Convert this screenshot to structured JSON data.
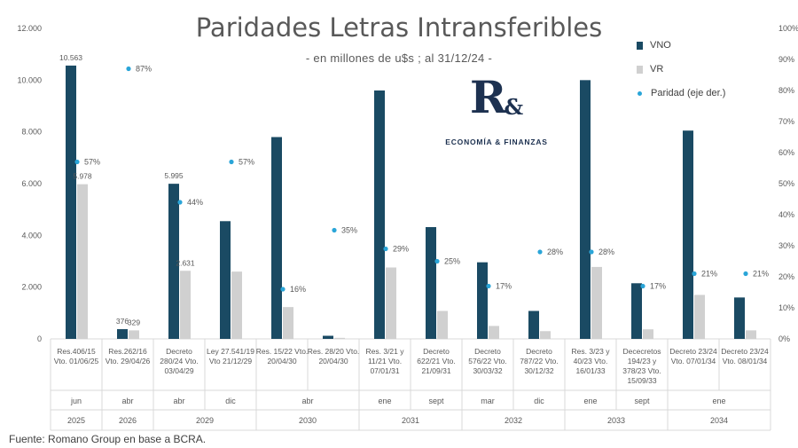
{
  "title": "Paridades Letras Intransferibles",
  "subtitle": "- en millones de u$s ; al 31/12/24 -",
  "legend": {
    "vno": "VNO",
    "vr": "VR",
    "paridad": "Paridad (eje der.)"
  },
  "logo": {
    "mark": "R",
    "amp": "&",
    "text": "ECONOMÍA & FINANZAS"
  },
  "source": "Fuente: Romano Group en base a BCRA.",
  "colors": {
    "vno": "#1a4a63",
    "vr": "#d0d0d0",
    "paridad": "#2aa5d8",
    "text": "#595959",
    "grid": "#d9d9d9"
  },
  "chart_data": {
    "type": "bar",
    "title": "Paridades Letras Intransferibles",
    "y_left": {
      "ylim": [
        0,
        12000
      ],
      "ticks": [
        "0",
        "2.000",
        "4.000",
        "6.000",
        "8.000",
        "10.000",
        "12.000"
      ]
    },
    "y_right": {
      "ylim": [
        0,
        100
      ],
      "ticks": [
        "0%",
        "10%",
        "20%",
        "30%",
        "40%",
        "50%",
        "60%",
        "70%",
        "80%",
        "90%",
        "100%"
      ]
    },
    "categories": [
      [
        "Res.406/15",
        "Vto. 01/06/25"
      ],
      [
        "Res.262/16",
        "Vto. 29/04/26"
      ],
      [
        "Decreto",
        "280/24 Vto.",
        "03/04/29"
      ],
      [
        "Ley 27.541/19",
        "Vto 21/12/29"
      ],
      [
        "Res. 15/22 Vto.",
        "20/04/30"
      ],
      [
        "Res. 28/20 Vto.",
        "20/04/30"
      ],
      [
        "Res. 3/21 y",
        "11/21 Vto.",
        "07/01/31"
      ],
      [
        "Decreto",
        "622/21 Vto.",
        "21/09/31"
      ],
      [
        "Decreto",
        "576/22 Vto.",
        "30/03/32"
      ],
      [
        "Decreto",
        "787/22 Vto.",
        "30/12/32"
      ],
      [
        "Res. 3/23 y",
        "40/23 Vto.",
        "16/01/33"
      ],
      [
        "Dececretos",
        "194/23 y",
        "378/23 Vto.",
        "15/09/33"
      ],
      [
        "Decreto 23/24",
        "Vto. 07/01/34"
      ],
      [
        "Decreto 23/24",
        "Vto. 08/01/34"
      ]
    ],
    "months": [
      {
        "label": "jun",
        "span": [
          0,
          0
        ]
      },
      {
        "label": "abr",
        "span": [
          1,
          1
        ]
      },
      {
        "label": "abr",
        "span": [
          2,
          2
        ]
      },
      {
        "label": "dic",
        "span": [
          3,
          3
        ]
      },
      {
        "label": "abr",
        "span": [
          4,
          5
        ]
      },
      {
        "label": "ene",
        "span": [
          6,
          6
        ]
      },
      {
        "label": "sept",
        "span": [
          7,
          7
        ]
      },
      {
        "label": "mar",
        "span": [
          8,
          8
        ]
      },
      {
        "label": "dic",
        "span": [
          9,
          9
        ]
      },
      {
        "label": "ene",
        "span": [
          10,
          10
        ]
      },
      {
        "label": "sept",
        "span": [
          11,
          11
        ]
      },
      {
        "label": "ene",
        "span": [
          12,
          13
        ]
      }
    ],
    "years": [
      {
        "label": "2025",
        "span": [
          0,
          0
        ]
      },
      {
        "label": "2026",
        "span": [
          1,
          1
        ]
      },
      {
        "label": "2029",
        "span": [
          2,
          3
        ]
      },
      {
        "label": "2030",
        "span": [
          4,
          5
        ]
      },
      {
        "label": "2031",
        "span": [
          6,
          7
        ]
      },
      {
        "label": "2032",
        "span": [
          8,
          9
        ]
      },
      {
        "label": "2033",
        "span": [
          10,
          11
        ]
      },
      {
        "label": "2034",
        "span": [
          12,
          13
        ]
      }
    ],
    "series": [
      {
        "name": "VNO",
        "axis": "left",
        "values": [
          10563,
          376,
          5995,
          4550,
          7800,
          120,
          9600,
          4320,
          2960,
          1080,
          10000,
          2150,
          8050,
          1600
        ],
        "labels": [
          "10.563",
          "376",
          "5.995",
          "",
          "",
          "",
          "",
          "",
          "",
          "",
          "",
          "",
          "",
          ""
        ]
      },
      {
        "name": "VR",
        "axis": "left",
        "values": [
          5978,
          329,
          2631,
          2600,
          1230,
          40,
          2760,
          1080,
          500,
          300,
          2780,
          370,
          1700,
          330
        ],
        "labels": [
          "5.978",
          "329",
          "2.631",
          "",
          "",
          "",
          "",
          "",
          "",
          "",
          "",
          "",
          "",
          ""
        ]
      },
      {
        "name": "Paridad (eje der.)",
        "axis": "right",
        "type": "scatter",
        "values": [
          57,
          87,
          44,
          57,
          16,
          35,
          29,
          25,
          17,
          28,
          28,
          17,
          21,
          21
        ],
        "labels": [
          "57%",
          "87%",
          "44%",
          "57%",
          "16%",
          "35%",
          "29%",
          "25%",
          "17%",
          "28%",
          "28%",
          "17%",
          "21%",
          "21%"
        ]
      }
    ]
  }
}
